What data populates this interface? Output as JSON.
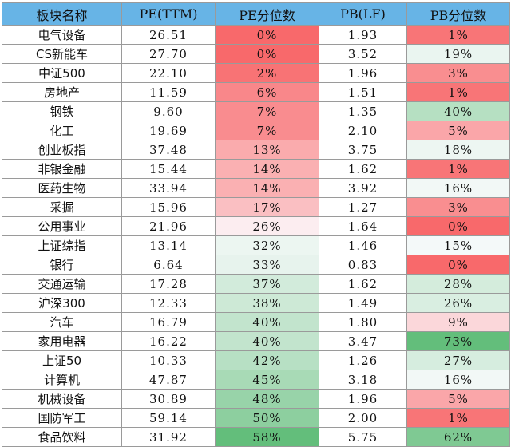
{
  "headers": [
    "板块名称",
    "PE(TTM)",
    "PE分位数",
    "PB(LF)",
    "PB分位数"
  ],
  "rows": [
    {
      "name": "电气设备",
      "pe": "26.51",
      "pe_pct": "0%",
      "pb": "1.93",
      "pb_pct": "1%"
    },
    {
      "name": "CS新能车",
      "pe": "27.70",
      "pe_pct": "0%",
      "pb": "3.52",
      "pb_pct": "19%"
    },
    {
      "name": "中证500",
      "pe": "22.10",
      "pe_pct": "2%",
      "pb": "1.96",
      "pb_pct": "3%"
    },
    {
      "name": "房地产",
      "pe": "11.59",
      "pe_pct": "6%",
      "pb": "1.51",
      "pb_pct": "1%"
    },
    {
      "name": "钢铁",
      "pe": "9.60",
      "pe_pct": "7%",
      "pb": "1.35",
      "pb_pct": "40%"
    },
    {
      "name": "化工",
      "pe": "19.69",
      "pe_pct": "7%",
      "pb": "2.10",
      "pb_pct": "5%"
    },
    {
      "name": "创业板指",
      "pe": "37.48",
      "pe_pct": "13%",
      "pb": "3.75",
      "pb_pct": "18%"
    },
    {
      "name": "非银金融",
      "pe": "15.44",
      "pe_pct": "14%",
      "pb": "1.62",
      "pb_pct": "1%"
    },
    {
      "name": "医药生物",
      "pe": "33.94",
      "pe_pct": "14%",
      "pb": "3.92",
      "pb_pct": "16%"
    },
    {
      "name": "采掘",
      "pe": "15.96",
      "pe_pct": "17%",
      "pb": "1.27",
      "pb_pct": "3%"
    },
    {
      "name": "公用事业",
      "pe": "21.96",
      "pe_pct": "26%",
      "pb": "1.64",
      "pb_pct": "0%"
    },
    {
      "name": "上证综指",
      "pe": "13.14",
      "pe_pct": "32%",
      "pb": "1.46",
      "pb_pct": "15%"
    },
    {
      "name": "银行",
      "pe": "6.64",
      "pe_pct": "33%",
      "pb": "0.83",
      "pb_pct": "0%"
    },
    {
      "name": "交通运输",
      "pe": "17.28",
      "pe_pct": "37%",
      "pb": "1.62",
      "pb_pct": "28%"
    },
    {
      "name": "沪深300",
      "pe": "12.33",
      "pe_pct": "38%",
      "pb": "1.49",
      "pb_pct": "26%"
    },
    {
      "name": "汽车",
      "pe": "16.79",
      "pe_pct": "40%",
      "pb": "1.80",
      "pb_pct": "9%"
    },
    {
      "name": "家用电器",
      "pe": "16.22",
      "pe_pct": "40%",
      "pb": "3.47",
      "pb_pct": "73%"
    },
    {
      "name": "上证50",
      "pe": "10.33",
      "pe_pct": "42%",
      "pb": "1.26",
      "pb_pct": "27%"
    },
    {
      "name": "计算机",
      "pe": "47.87",
      "pe_pct": "45%",
      "pb": "3.18",
      "pb_pct": "16%"
    },
    {
      "name": "机械设备",
      "pe": "30.89",
      "pe_pct": "48%",
      "pb": "1.96",
      "pb_pct": "5%"
    },
    {
      "name": "国防军工",
      "pe": "59.14",
      "pe_pct": "50%",
      "pb": "2.00",
      "pb_pct": "1%"
    },
    {
      "name": "食品饮料",
      "pe": "31.92",
      "pe_pct": "58%",
      "pb": "5.75",
      "pb_pct": "62%"
    }
  ],
  "colors": {
    "header_bg": "#67b4e6",
    "scale_low": "#f8696b",
    "scale_mid": "#fcfcff",
    "scale_high": "#63be7b"
  }
}
